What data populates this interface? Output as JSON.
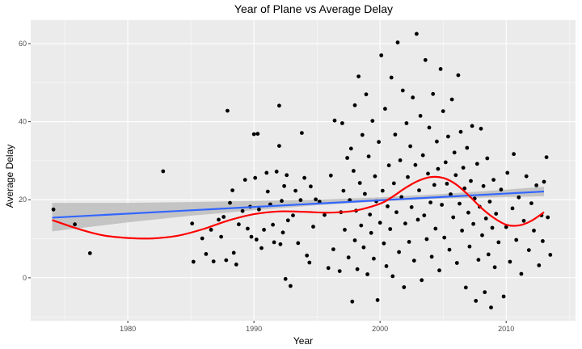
{
  "chart_data": {
    "type": "scatter",
    "title": "Year of Plane vs Average Delay",
    "xlabel": "Year",
    "ylabel": "Average Delay",
    "xlim": [
      1972.3,
      2015.5
    ],
    "ylim": [
      -11,
      66
    ],
    "x_ticks": [
      1980,
      1990,
      2000,
      2010
    ],
    "y_ticks": [
      0,
      20,
      40,
      60
    ],
    "grid": true,
    "legend": "none",
    "colors": {
      "panel": "#ebebeb",
      "grid": "#ffffff",
      "points": "#000000",
      "linear_fit": "#3366ff",
      "ci_band": "#bdbdbd",
      "smooth_fit": "#ff0000"
    },
    "linear_fit": {
      "x": [
        1974,
        2013
      ],
      "y": [
        15.4,
        22.1
      ]
    },
    "linear_ci": {
      "x": [
        1974,
        1980,
        1985,
        1990,
        1995,
        2000,
        2005,
        2010,
        2013
      ],
      "lower": [
        11.9,
        14.2,
        15.9,
        17.3,
        18.6,
        19.6,
        20.3,
        20.7,
        20.9
      ],
      "upper": [
        19.2,
        19.2,
        19.4,
        19.7,
        20.0,
        20.6,
        21.5,
        22.6,
        23.3
      ]
    },
    "smooth_fit": {
      "x": [
        1974,
        1976,
        1978,
        1980,
        1982,
        1984,
        1986,
        1988,
        1990,
        1992,
        1994,
        1996,
        1998,
        2000,
        2001,
        2002,
        2003,
        2004,
        2005,
        2006,
        2007,
        2008,
        2009,
        2010,
        2011,
        2012,
        2013
      ],
      "y": [
        14.8,
        12.6,
        10.9,
        10.2,
        10.1,
        10.8,
        12.5,
        14.7,
        16.3,
        17.0,
        16.9,
        16.7,
        17.2,
        19.0,
        20.8,
        23.0,
        24.8,
        25.8,
        25.6,
        24.0,
        21.2,
        18.0,
        15.4,
        13.6,
        13.4,
        14.6,
        16.8
      ]
    },
    "points": [
      [
        1974.1,
        17.5
      ],
      [
        1975.8,
        13.7
      ],
      [
        1977.0,
        6.3
      ],
      [
        1982.8,
        27.3
      ],
      [
        1985.1,
        13.9
      ],
      [
        1985.2,
        4.1
      ],
      [
        1985.9,
        10.1
      ],
      [
        1986.2,
        6.1
      ],
      [
        1986.6,
        12.3
      ],
      [
        1986.8,
        4.2
      ],
      [
        1987.2,
        14.9
      ],
      [
        1987.4,
        10.5
      ],
      [
        1987.6,
        15.6
      ],
      [
        1987.8,
        4.5
      ],
      [
        1987.9,
        42.8
      ],
      [
        1988.1,
        19.2
      ],
      [
        1988.3,
        22.4
      ],
      [
        1988.4,
        6.4
      ],
      [
        1988.6,
        3.4
      ],
      [
        1988.8,
        13.7
      ],
      [
        1989.1,
        17.1
      ],
      [
        1989.3,
        25.1
      ],
      [
        1989.5,
        12.6
      ],
      [
        1989.7,
        18.2
      ],
      [
        1989.8,
        10.5
      ],
      [
        1990.0,
        36.8
      ],
      [
        1990.1,
        25.6
      ],
      [
        1990.2,
        9.8
      ],
      [
        1990.3,
        36.9
      ],
      [
        1990.4,
        17.5
      ],
      [
        1990.6,
        7.6
      ],
      [
        1990.8,
        12.3
      ],
      [
        1991.0,
        26.9
      ],
      [
        1991.1,
        22.1
      ],
      [
        1991.3,
        18.8
      ],
      [
        1991.5,
        13.6
      ],
      [
        1991.6,
        9.1
      ],
      [
        1991.8,
        27.2
      ],
      [
        1992.0,
        44.1
      ],
      [
        1992.0,
        33.8
      ],
      [
        1992.1,
        8.6
      ],
      [
        1992.2,
        19.7
      ],
      [
        1992.3,
        11.6
      ],
      [
        1992.4,
        23.5
      ],
      [
        1992.5,
        -0.3
      ],
      [
        1992.6,
        26.3
      ],
      [
        1992.7,
        14.7
      ],
      [
        1992.9,
        -2.1
      ],
      [
        1993.1,
        16.0
      ],
      [
        1993.3,
        22.3
      ],
      [
        1993.5,
        8.9
      ],
      [
        1993.7,
        19.9
      ],
      [
        1993.8,
        37.1
      ],
      [
        1994.0,
        25.6
      ],
      [
        1994.2,
        5.7
      ],
      [
        1994.4,
        3.9
      ],
      [
        1994.5,
        23.4
      ],
      [
        1994.7,
        13.1
      ],
      [
        1994.9,
        20.1
      ],
      [
        1995.2,
        19.5
      ],
      [
        1995.6,
        16.1
      ],
      [
        1995.9,
        2.5
      ],
      [
        1996.1,
        26.2
      ],
      [
        1996.3,
        7.3
      ],
      [
        1996.4,
        40.3
      ],
      [
        1996.8,
        1.7
      ],
      [
        1996.9,
        16.8
      ],
      [
        1997.0,
        39.6
      ],
      [
        1997.1,
        22.3
      ],
      [
        1997.2,
        12.3
      ],
      [
        1997.4,
        30.7
      ],
      [
        1997.5,
        5.2
      ],
      [
        1997.6,
        19.9
      ],
      [
        1997.7,
        33.1
      ],
      [
        1997.8,
        -6.1
      ],
      [
        1997.9,
        27.4
      ],
      [
        1998.0,
        9.6
      ],
      [
        1998.0,
        44.2
      ],
      [
        1998.1,
        17.2
      ],
      [
        1998.2,
        2.2
      ],
      [
        1998.3,
        51.6
      ],
      [
        1998.4,
        24.3
      ],
      [
        1998.5,
        13.4
      ],
      [
        1998.6,
        36.6
      ],
      [
        1998.7,
        7.8
      ],
      [
        1998.8,
        21.5
      ],
      [
        1998.9,
        47.0
      ],
      [
        1999.0,
        0.9
      ],
      [
        1999.1,
        31.1
      ],
      [
        1999.2,
        16.2
      ],
      [
        1999.3,
        11.5
      ],
      [
        1999.4,
        40.2
      ],
      [
        1999.5,
        4.9
      ],
      [
        1999.6,
        26.0
      ],
      [
        1999.7,
        19.6
      ],
      [
        1999.8,
        -5.7
      ],
      [
        1999.9,
        34.8
      ],
      [
        2000.0,
        14.1
      ],
      [
        2000.1,
        57.0
      ],
      [
        2000.2,
        22.3
      ],
      [
        2000.3,
        8.8
      ],
      [
        2000.4,
        43.3
      ],
      [
        2000.5,
        3.0
      ],
      [
        2000.6,
        18.3
      ],
      [
        2000.7,
        28.8
      ],
      [
        2000.8,
        12.5
      ],
      [
        2000.9,
        51.3
      ],
      [
        2001.0,
        0.4
      ],
      [
        2001.1,
        24.2
      ],
      [
        2001.2,
        36.7
      ],
      [
        2001.3,
        16.8
      ],
      [
        2001.4,
        60.3
      ],
      [
        2001.5,
        6.6
      ],
      [
        2001.6,
        30.1
      ],
      [
        2001.7,
        20.7
      ],
      [
        2001.8,
        48.0
      ],
      [
        2001.9,
        -2.4
      ],
      [
        2002.0,
        13.9
      ],
      [
        2002.1,
        39.6
      ],
      [
        2002.2,
        25.8
      ],
      [
        2002.3,
        9.2
      ],
      [
        2002.4,
        33.7
      ],
      [
        2002.5,
        18.1
      ],
      [
        2002.6,
        46.2
      ],
      [
        2002.7,
        4.4
      ],
      [
        2002.8,
        28.9
      ],
      [
        2002.9,
        62.5
      ],
      [
        2003.0,
        14.9
      ],
      [
        2003.1,
        22.4
      ],
      [
        2003.2,
        41.5
      ],
      [
        2003.3,
        -0.6
      ],
      [
        2003.4,
        31.4
      ],
      [
        2003.5,
        16.0
      ],
      [
        2003.6,
        55.8
      ],
      [
        2003.7,
        9.9
      ],
      [
        2003.8,
        26.7
      ],
      [
        2003.9,
        38.5
      ],
      [
        2004.0,
        19.3
      ],
      [
        2004.1,
        5.4
      ],
      [
        2004.2,
        47.1
      ],
      [
        2004.3,
        23.8
      ],
      [
        2004.4,
        12.6
      ],
      [
        2004.5,
        34.9
      ],
      [
        2004.6,
        27.9
      ],
      [
        2004.7,
        1.9
      ],
      [
        2004.8,
        53.5
      ],
      [
        2004.9,
        18.7
      ],
      [
        2005.0,
        42.7
      ],
      [
        2005.1,
        10.3
      ],
      [
        2005.2,
        29.6
      ],
      [
        2005.3,
        24.1
      ],
      [
        2005.4,
        36.2
      ],
      [
        2005.5,
        7.2
      ],
      [
        2005.6,
        21.4
      ],
      [
        2005.7,
        45.7
      ],
      [
        2005.8,
        15.5
      ],
      [
        2005.9,
        32.1
      ],
      [
        2006.0,
        26.3
      ],
      [
        2006.1,
        3.8
      ],
      [
        2006.2,
        51.9
      ],
      [
        2006.3,
        19.0
      ],
      [
        2006.4,
        37.4
      ],
      [
        2006.5,
        12.1
      ],
      [
        2006.6,
        28.2
      ],
      [
        2006.7,
        22.9
      ],
      [
        2006.8,
        -2.5
      ],
      [
        2006.9,
        33.3
      ],
      [
        2007.0,
        16.7
      ],
      [
        2007.1,
        8.0
      ],
      [
        2007.2,
        24.8
      ],
      [
        2007.3,
        38.9
      ],
      [
        2007.4,
        13.8
      ],
      [
        2007.5,
        20.3
      ],
      [
        2007.6,
        -5.9
      ],
      [
        2007.7,
        29.2
      ],
      [
        2007.8,
        4.6
      ],
      [
        2007.9,
        18.2
      ],
      [
        2008.0,
        38.2
      ],
      [
        2008.1,
        10.9
      ],
      [
        2008.2,
        23.5
      ],
      [
        2008.3,
        -3.7
      ],
      [
        2008.4,
        15.2
      ],
      [
        2008.5,
        30.6
      ],
      [
        2008.6,
        6.0
      ],
      [
        2008.7,
        19.5
      ],
      [
        2008.8,
        -7.6
      ],
      [
        2008.9,
        12.8
      ],
      [
        2009.0,
        25.1
      ],
      [
        2009.1,
        2.7
      ],
      [
        2009.2,
        16.4
      ],
      [
        2009.4,
        9.1
      ],
      [
        2009.6,
        22.6
      ],
      [
        2009.8,
        -4.8
      ],
      [
        2010.0,
        13.0
      ],
      [
        2010.1,
        26.9
      ],
      [
        2010.3,
        4.1
      ],
      [
        2010.5,
        17.8
      ],
      [
        2010.6,
        31.7
      ],
      [
        2010.8,
        9.7
      ],
      [
        2011.0,
        20.6
      ],
      [
        2011.2,
        1.0
      ],
      [
        2011.4,
        14.6
      ],
      [
        2011.6,
        26.0
      ],
      [
        2011.8,
        7.1
      ],
      [
        2012.0,
        19.1
      ],
      [
        2012.2,
        12.1
      ],
      [
        2012.4,
        23.7
      ],
      [
        2012.6,
        3.2
      ],
      [
        2012.8,
        16.0
      ],
      [
        2012.9,
        9.4
      ],
      [
        2013.0,
        24.6
      ],
      [
        2013.2,
        30.9
      ],
      [
        2013.3,
        15.5
      ],
      [
        2013.5,
        5.9
      ]
    ]
  }
}
